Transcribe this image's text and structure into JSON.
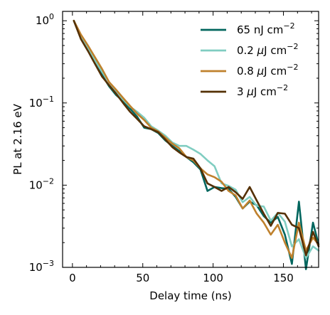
{
  "chart_data": {
    "type": "line",
    "xlabel": "Delay time (ns)",
    "ylabel": "PL at 2.16 eV",
    "xlim": [
      -7,
      175
    ],
    "ylim": [
      0.001,
      1.3
    ],
    "yscale": "log",
    "xticks": [
      0,
      50,
      100,
      150
    ],
    "ytick_labels": [
      {
        "base": "10",
        "exp": "0",
        "value": 1
      },
      {
        "base": "10",
        "exp": "−1",
        "value": 0.1
      },
      {
        "base": "10",
        "exp": "−2",
        "value": 0.01
      },
      {
        "base": "10",
        "exp": "−3",
        "value": 0.001
      }
    ],
    "grid": false,
    "legend_position": "top-right",
    "series": [
      {
        "name": "65 nJ cm",
        "name_sup": "−2",
        "name_parts": [
          {
            "t": "65 nJ cm"
          }
        ],
        "color": "#01665e",
        "x": [
          1,
          6,
          11,
          16,
          21,
          26,
          31,
          36,
          41,
          46,
          51,
          56,
          61,
          66,
          71,
          76,
          81,
          86,
          91,
          96,
          101,
          106,
          111,
          116,
          121,
          126,
          131,
          136,
          141,
          146,
          151,
          156,
          161,
          166,
          171,
          175
        ],
        "y": [
          1.0,
          0.62,
          0.45,
          0.31,
          0.22,
          0.16,
          0.125,
          0.105,
          0.085,
          0.068,
          0.05,
          0.048,
          0.043,
          0.035,
          0.03,
          0.026,
          0.022,
          0.019,
          0.0155,
          0.0085,
          0.0095,
          0.0092,
          0.009,
          0.0072,
          0.0052,
          0.0063,
          0.0057,
          0.0042,
          0.0035,
          0.0041,
          0.0025,
          0.0011,
          0.0063,
          0.00095,
          0.0035,
          0.0019
        ]
      },
      {
        "name": "0.2 ",
        "name_sup": "−2",
        "name_parts": [
          {
            "t": "0.2 "
          },
          {
            "t": "μ",
            "italic": true
          },
          {
            "t": "J cm"
          }
        ],
        "color": "#80cdc1",
        "x": [
          1,
          6,
          11,
          16,
          21,
          26,
          31,
          36,
          41,
          46,
          51,
          56,
          61,
          66,
          71,
          76,
          81,
          86,
          91,
          96,
          101,
          106,
          111,
          116,
          121,
          126,
          131,
          136,
          141,
          146,
          151,
          156,
          161,
          166,
          171,
          175
        ],
        "y": [
          1.0,
          0.65,
          0.47,
          0.33,
          0.24,
          0.18,
          0.14,
          0.11,
          0.09,
          0.078,
          0.066,
          0.052,
          0.046,
          0.04,
          0.033,
          0.03,
          0.03,
          0.027,
          0.024,
          0.02,
          0.017,
          0.0105,
          0.0098,
          0.0088,
          0.0062,
          0.0072,
          0.0056,
          0.0055,
          0.0037,
          0.0046,
          0.0036,
          0.0018,
          0.0022,
          0.0013,
          0.0018,
          0.0016
        ]
      },
      {
        "name": "0.8 ",
        "name_sup": "−2",
        "name_parts": [
          {
            "t": "0.8 "
          },
          {
            "t": "μ",
            "italic": true
          },
          {
            "t": "J cm"
          }
        ],
        "color": "#bf812d",
        "x": [
          1,
          6,
          11,
          16,
          21,
          26,
          31,
          36,
          41,
          46,
          51,
          56,
          61,
          66,
          71,
          76,
          81,
          86,
          91,
          96,
          101,
          106,
          111,
          116,
          121,
          126,
          131,
          136,
          141,
          146,
          151,
          156,
          161,
          166,
          171,
          175
        ],
        "y": [
          1.0,
          0.68,
          0.5,
          0.36,
          0.26,
          0.18,
          0.145,
          0.115,
          0.092,
          0.074,
          0.062,
          0.05,
          0.045,
          0.038,
          0.032,
          0.028,
          0.022,
          0.02,
          0.016,
          0.0135,
          0.0125,
          0.011,
          0.0085,
          0.0075,
          0.0052,
          0.0065,
          0.0045,
          0.0035,
          0.0025,
          0.0033,
          0.002,
          0.0013,
          0.0035,
          0.0016,
          0.0023,
          0.0019
        ]
      },
      {
        "name": "3 ",
        "name_sup": "−2",
        "name_parts": [
          {
            "t": "3 "
          },
          {
            "t": "μ",
            "italic": true
          },
          {
            "t": "J cm"
          }
        ],
        "color": "#543005",
        "x": [
          1,
          6,
          11,
          16,
          21,
          26,
          31,
          36,
          41,
          46,
          51,
          56,
          61,
          66,
          71,
          76,
          81,
          86,
          91,
          96,
          101,
          106,
          111,
          116,
          121,
          126,
          131,
          136,
          141,
          146,
          151,
          156,
          161,
          166,
          171,
          175
        ],
        "y": [
          1.0,
          0.6,
          0.43,
          0.3,
          0.21,
          0.165,
          0.13,
          0.1,
          0.078,
          0.064,
          0.052,
          0.048,
          0.044,
          0.036,
          0.029,
          0.025,
          0.022,
          0.021,
          0.016,
          0.0105,
          0.0095,
          0.0085,
          0.0095,
          0.0082,
          0.0068,
          0.0095,
          0.0065,
          0.0045,
          0.0032,
          0.0046,
          0.0045,
          0.0033,
          0.003,
          0.0014,
          0.0027,
          0.0018
        ]
      }
    ]
  }
}
